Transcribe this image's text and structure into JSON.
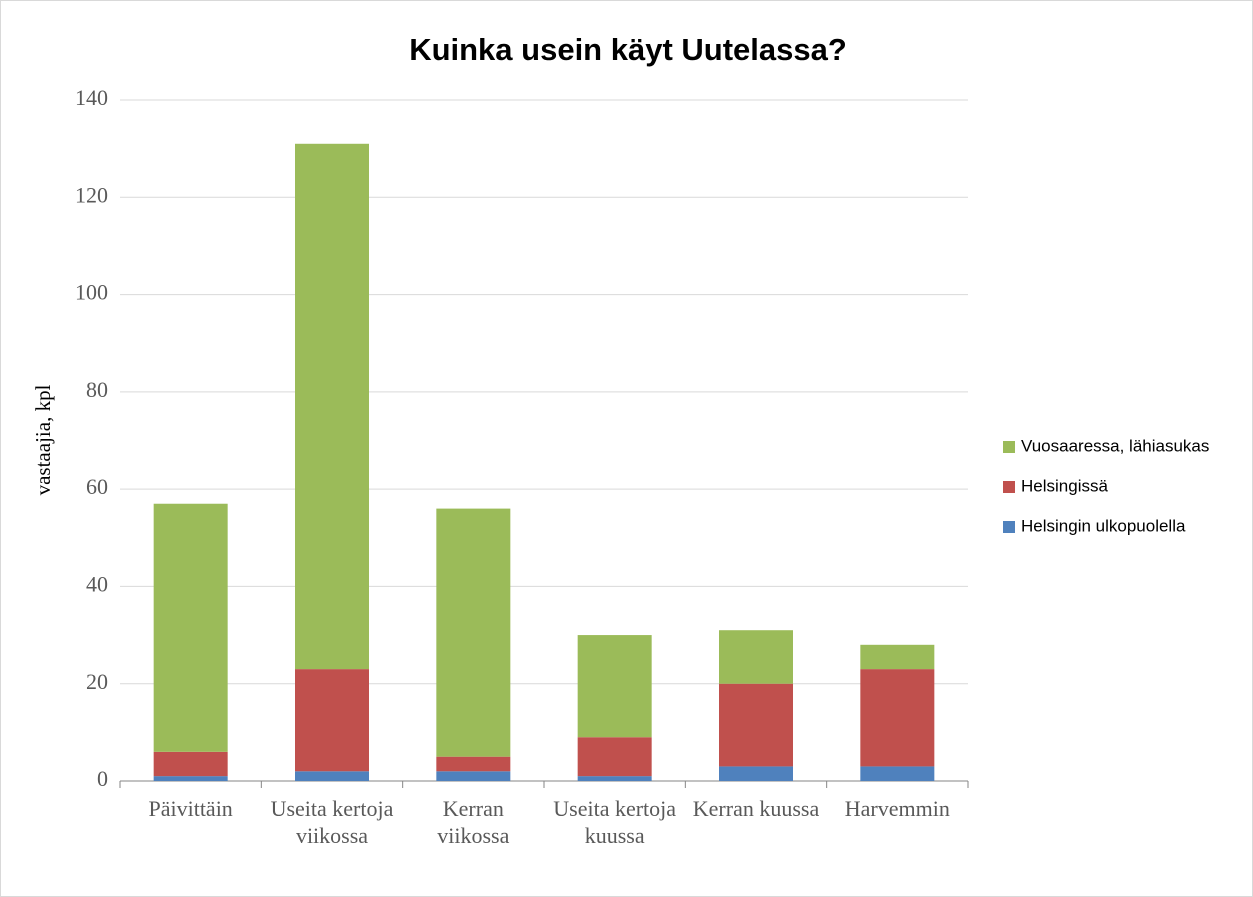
{
  "chart_data": {
    "type": "stacked_bar",
    "title": "Kuinka usein käyt Uutelassa?",
    "y_label": "vastaajia, kpl",
    "categories": [
      "Päivittäin",
      "Useita kertoja viikossa",
      "Kerran viikossa",
      "Useita kertoja kuussa",
      "Kerran kuussa",
      "Harvemmin"
    ],
    "series": [
      {
        "name": "Helsingin ulkopuolella",
        "color": "#4f81bd",
        "values": [
          1,
          2,
          2,
          1,
          3,
          3
        ]
      },
      {
        "name": "Helsingissä",
        "color": "#c0504d",
        "values": [
          5,
          21,
          3,
          8,
          17,
          20
        ]
      },
      {
        "name": "Vuosaaressa, lähiasukas",
        "color": "#9bbb59",
        "values": [
          51,
          108,
          51,
          21,
          11,
          5
        ]
      }
    ],
    "ylim": [
      0,
      140
    ],
    "yticks": [
      0,
      20,
      40,
      60,
      80,
      100,
      120,
      140
    ],
    "grid": true,
    "legend": "right"
  }
}
